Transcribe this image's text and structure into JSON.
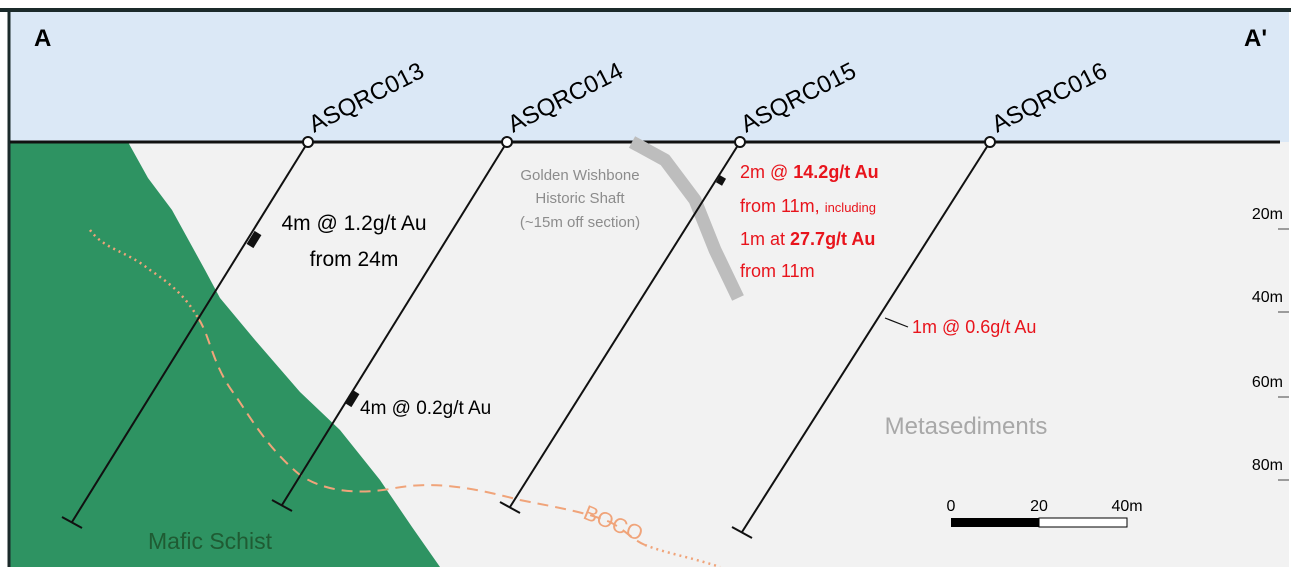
{
  "section": {
    "start_label": "A",
    "end_label": "A'"
  },
  "holes": [
    {
      "id": "ASQRC013",
      "label": "ASQRC013"
    },
    {
      "id": "ASQRC014",
      "label": "ASQRC014"
    },
    {
      "id": "ASQRC015",
      "label": "ASQRC015"
    },
    {
      "id": "ASQRC016",
      "label": "ASQRC016"
    }
  ],
  "intercepts": {
    "asqrc013": {
      "line1": "4m @ 1.2g/t Au",
      "line2": "from 24m"
    },
    "asqrc014": {
      "line1": "4m @ 0.2g/t Au"
    },
    "asqrc015": {
      "l1_prefix": "2m @ ",
      "l1_grade": "14.2g/t Au",
      "l2_prefix": "from 11m, ",
      "l2_small": "including",
      "l3_prefix": "1m at ",
      "l3_grade": "27.7g/t Au",
      "l4": "from 11m"
    },
    "asqrc016": {
      "line1": "1m @ 0.6g/t Au"
    }
  },
  "shaft": {
    "line1": "Golden Wishbone",
    "line2": "Historic Shaft",
    "line3": "(~15m off section)"
  },
  "lithology": {
    "mafic": "Mafic Schist",
    "metasediments": "Metasediments",
    "contact": "BOCO"
  },
  "depth_axis": {
    "ticks": [
      "20m",
      "40m",
      "60m",
      "80m"
    ]
  },
  "scale_bar": {
    "labels": [
      "0",
      "20",
      "40m"
    ]
  },
  "colors": {
    "sky": "#dbe8f6",
    "ground": "#f2f2f2",
    "mafic": "#2e9362",
    "mafic_label": "#1f5b33",
    "boco": "#f0a47a",
    "highlight": "#e8141c",
    "shaft": "#bdbdbd",
    "shaft_text": "#8c8c8c",
    "metased_text": "#a8a8a8"
  }
}
